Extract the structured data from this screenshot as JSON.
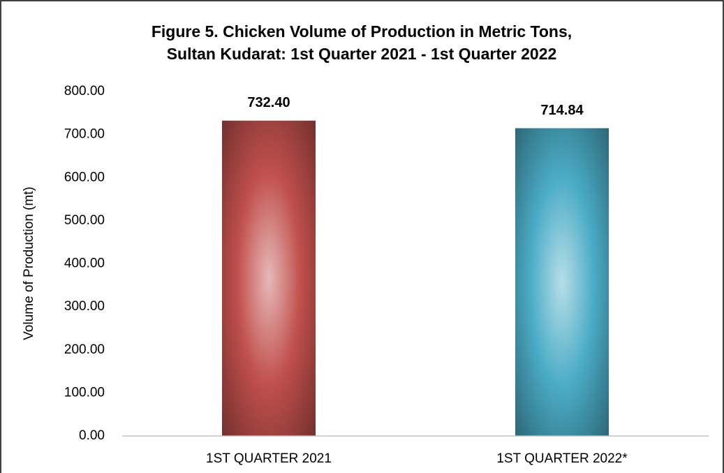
{
  "chart_data": {
    "type": "bar",
    "title": [
      "Figure 5. Chicken Volume of Production in Metric Tons,",
      "Sultan Kudarat: 1st Quarter 2021 - 1st Quarter 2022"
    ],
    "y_label": "Volume of Production (mt)",
    "categories": [
      "1ST QUARTER 2021",
      "1ST QUARTER 2022*"
    ],
    "values": [
      732.4,
      714.84
    ],
    "value_labels": [
      "732.40",
      "714.84"
    ],
    "colors": [
      "#c0504d",
      "#4bacc6"
    ],
    "ylim": [
      0,
      800
    ],
    "yticks": [
      {
        "value": 0,
        "label": "0.00"
      },
      {
        "value": 100,
        "label": "100.00"
      },
      {
        "value": 200,
        "label": "200.00"
      },
      {
        "value": 300,
        "label": "300.00"
      },
      {
        "value": 400,
        "label": "400.00"
      },
      {
        "value": 500,
        "label": "500.00"
      },
      {
        "value": 600,
        "label": "600.00"
      },
      {
        "value": 700,
        "label": "700.00"
      },
      {
        "value": 800,
        "label": "800.00"
      }
    ],
    "grid": false
  }
}
